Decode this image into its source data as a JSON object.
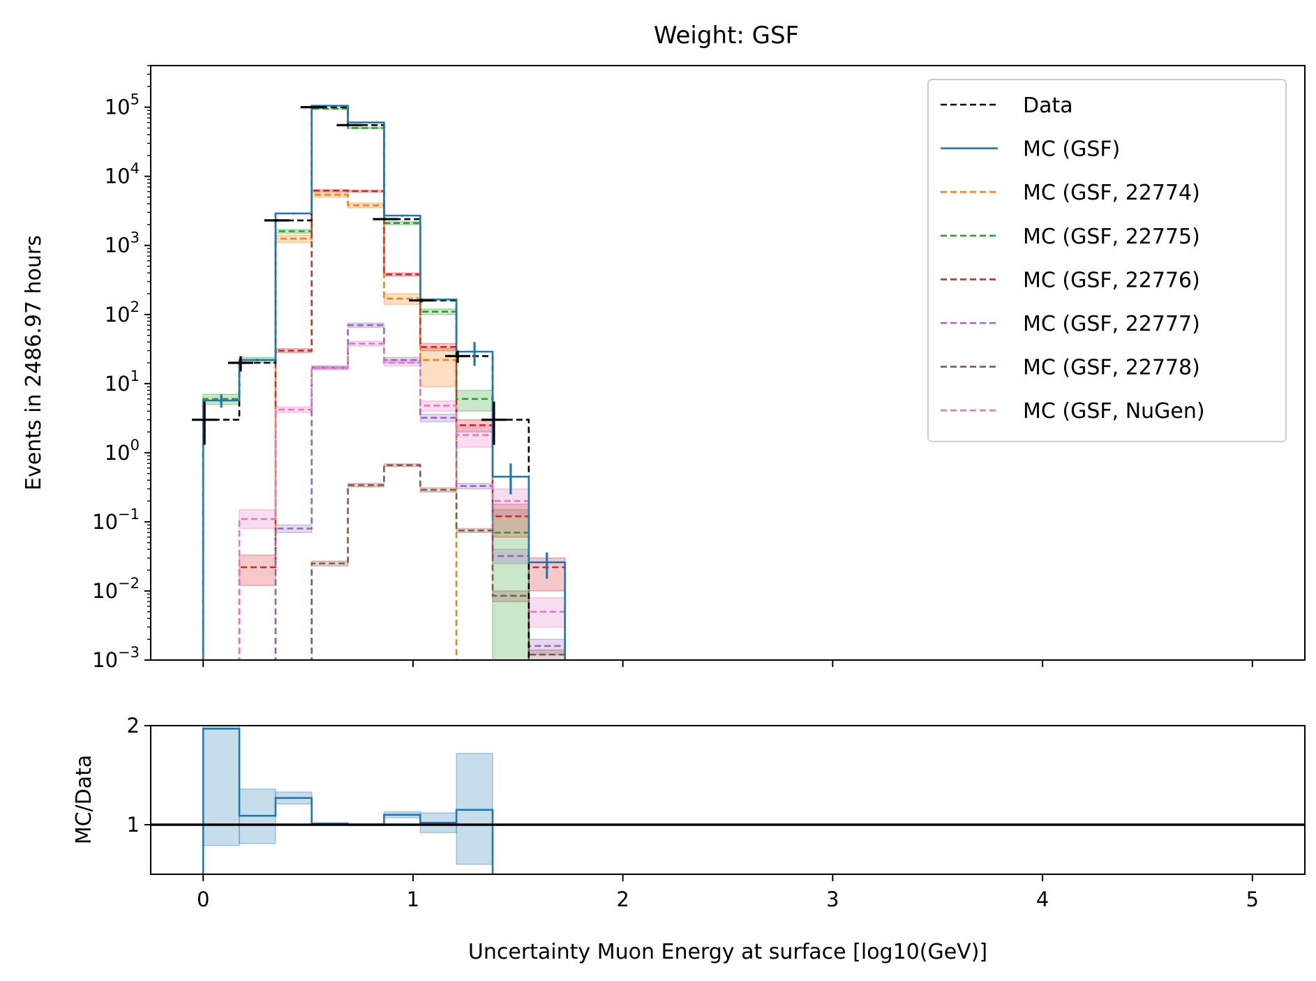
{
  "chart_data": [
    {
      "type": "histogram",
      "title": "Weight: GSF",
      "ylabel": "Events in 2486.97 hours",
      "yscale": "log",
      "ylim": [
        0.001,
        400000
      ],
      "xlim": [
        -0.25,
        5.25
      ],
      "bin_edges": [
        0.0,
        0.1724,
        0.3448,
        0.5172,
        0.6897,
        0.8621,
        1.0345,
        1.2069,
        1.3793,
        1.5517,
        1.7241
      ],
      "ytick_labels": [
        {
          "value": 0.001,
          "base": "10",
          "exp": "−3"
        },
        {
          "value": 0.01,
          "base": "10",
          "exp": "−2"
        },
        {
          "value": 0.1,
          "base": "10",
          "exp": "−1"
        },
        {
          "value": 1,
          "base": "10",
          "exp": "0"
        },
        {
          "value": 10,
          "base": "10",
          "exp": "1"
        },
        {
          "value": 100,
          "base": "10",
          "exp": "2"
        },
        {
          "value": 1000,
          "base": "10",
          "exp": "3"
        },
        {
          "value": 10000,
          "base": "10",
          "exp": "4"
        },
        {
          "value": 100000,
          "base": "10",
          "exp": "5"
        }
      ],
      "legend": {
        "placement": "top-right",
        "entries": [
          {
            "label": "Data",
            "color": "#000000",
            "style": "dashed"
          },
          {
            "label": "MC (GSF)",
            "color": "#1f77b4",
            "style": "solid"
          },
          {
            "label": "MC (GSF, 22774)",
            "color": "#ff7f0e",
            "style": "dashed"
          },
          {
            "label": "MC (GSF, 22775)",
            "color": "#2ca02c",
            "style": "dashed"
          },
          {
            "label": "MC (GSF, 22776)",
            "color": "#d62728",
            "style": "dashed"
          },
          {
            "label": "MC (GSF, 22777)",
            "color": "#9467bd",
            "style": "dashed"
          },
          {
            "label": "MC (GSF, 22778)",
            "color": "#8c564b",
            "style": "dashed"
          },
          {
            "label": "MC (GSF, NuGen)",
            "color": "#e377c2",
            "style": "dashed"
          }
        ]
      },
      "series": [
        {
          "name": "Data",
          "color": "#000000",
          "style": "dashed",
          "values": [
            3.0,
            20.0,
            2300,
            100000,
            55000,
            2400,
            160,
            25,
            3.0,
            null
          ],
          "err_low": [
            1.3,
            15,
            2200,
            99000,
            54000,
            2300,
            150,
            20,
            1.3,
            null
          ],
          "err_high": [
            5.5,
            25,
            2400,
            101000,
            56000,
            2500,
            170,
            30,
            5.5,
            null
          ]
        },
        {
          "name": "MC (GSF)",
          "color": "#1f77b4",
          "style": "solid",
          "values": [
            5.7,
            22,
            2900,
            105000,
            60000,
            2700,
            165,
            29,
            0.45,
            0.026
          ],
          "err_low": [
            4.5,
            21,
            2800,
            104000,
            59000,
            2600,
            160,
            18,
            0.25,
            0.015
          ],
          "err_high": [
            7.0,
            23,
            3000,
            106000,
            61000,
            2800,
            170,
            40,
            0.7,
            0.036
          ]
        },
        {
          "name": "MC (GSF, 22774)",
          "color": "#ff7f0e",
          "style": "dashed",
          "values": [
            null,
            null,
            1250,
            5400,
            3800,
            170,
            22,
            null,
            null,
            null
          ],
          "band": [
            [
              null,
              null
            ],
            [
              null,
              null
            ],
            [
              1100,
              1400
            ],
            [
              5000,
              5800
            ],
            [
              3500,
              4100
            ],
            [
              140,
              200
            ],
            [
              9,
              33
            ],
            [
              null,
              null
            ],
            [
              null,
              null
            ],
            [
              null,
              null
            ]
          ]
        },
        {
          "name": "MC (GSF, 22775)",
          "color": "#2ca02c",
          "style": "dashed",
          "values": [
            6.0,
            22,
            1600,
            95000,
            50000,
            2100,
            110,
            6.0,
            0.07,
            null
          ],
          "band": [
            [
              5.0,
              7.0
            ],
            [
              20,
              24
            ],
            [
              1500,
              1700
            ],
            [
              94000,
              96000
            ],
            [
              49000,
              51000
            ],
            [
              2000,
              2200
            ],
            [
              100,
              120
            ],
            [
              4,
              8
            ],
            [
              0.001,
              0.15
            ],
            [
              null,
              null
            ]
          ]
        },
        {
          "name": "MC (GSF, 22776)",
          "color": "#d62728",
          "style": "dashed",
          "values": [
            null,
            0.022,
            30,
            6200,
            6100,
            380,
            34,
            2.5,
            0.12,
            0.022
          ],
          "band": [
            [
              null,
              null
            ],
            [
              0.012,
              0.033
            ],
            [
              28,
              32
            ],
            [
              6000,
              6400
            ],
            [
              5900,
              6300
            ],
            [
              360,
              400
            ],
            [
              30,
              38
            ],
            [
              2.0,
              3.0
            ],
            [
              0.06,
              0.18
            ],
            [
              0.01,
              0.03
            ]
          ]
        },
        {
          "name": "MC (GSF, 22777)",
          "color": "#9467bd",
          "style": "dashed",
          "values": [
            null,
            null,
            0.08,
            17,
            70,
            22,
            3.2,
            0.33,
            0.032,
            0.0016
          ],
          "band": [
            [
              null,
              null
            ],
            [
              null,
              null
            ],
            [
              0.07,
              0.09
            ],
            [
              16,
              18
            ],
            [
              65,
              75
            ],
            [
              20,
              24
            ],
            [
              2.8,
              3.6
            ],
            [
              0.3,
              0.36
            ],
            [
              0.025,
              0.04
            ],
            [
              0.0012,
              0.002
            ]
          ]
        },
        {
          "name": "MC (GSF, 22778)",
          "color": "#8c564b",
          "style": "dashed",
          "values": [
            null,
            null,
            null,
            0.025,
            0.34,
            0.66,
            0.29,
            0.075,
            0.0085,
            0.0012
          ],
          "band": [
            [
              null,
              null
            ],
            [
              null,
              null
            ],
            [
              null,
              null
            ],
            [
              0.023,
              0.027
            ],
            [
              0.32,
              0.36
            ],
            [
              0.63,
              0.69
            ],
            [
              0.27,
              0.31
            ],
            [
              0.07,
              0.08
            ],
            [
              0.007,
              0.01
            ],
            [
              0.001,
              0.0014
            ]
          ]
        },
        {
          "name": "MC (GSF, NuGen)",
          "color": "#e377c2",
          "style": "dashed",
          "values": [
            null,
            0.11,
            4.2,
            17,
            38,
            20,
            4.8,
            1.8,
            0.2,
            0.005
          ],
          "band": [
            [
              null,
              null
            ],
            [
              0.08,
              0.15
            ],
            [
              3.8,
              4.6
            ],
            [
              16,
              18
            ],
            [
              35,
              41
            ],
            [
              18,
              22
            ],
            [
              4.0,
              5.6
            ],
            [
              1.2,
              2.5
            ],
            [
              0.12,
              0.3
            ],
            [
              0.003,
              0.008
            ]
          ]
        }
      ]
    },
    {
      "type": "histogram",
      "ylabel": "MC/Data",
      "xlabel": "Uncertainty Muon Energy at surface [log10(GeV)]",
      "ylim": [
        0.5,
        2.0
      ],
      "xlim": [
        -0.25,
        5.25
      ],
      "ytick_labels": [
        "1",
        "2"
      ],
      "yticks": [
        1,
        2
      ],
      "xtick_labels": [
        "0",
        "1",
        "2",
        "3",
        "4",
        "5"
      ],
      "xticks": [
        0,
        1,
        2,
        3,
        4,
        5
      ],
      "reference_line": 1,
      "bin_edges": [
        0.0,
        0.1724,
        0.3448,
        0.5172,
        0.6897,
        0.8621,
        1.0345,
        1.2069,
        1.3793
      ],
      "series": [
        {
          "name": "MC (GSF)",
          "color": "#1f77b4",
          "values": [
            1.97,
            1.09,
            1.27,
            1.01,
            1.0,
            1.1,
            1.02,
            1.15
          ],
          "band": [
            [
              0.79,
              2.0
            ],
            [
              0.81,
              1.36
            ],
            [
              1.21,
              1.33
            ],
            [
              1.0,
              1.02
            ],
            [
              0.99,
              1.01
            ],
            [
              1.07,
              1.13
            ],
            [
              0.92,
              1.12
            ],
            [
              0.6,
              1.72
            ]
          ]
        }
      ]
    }
  ]
}
